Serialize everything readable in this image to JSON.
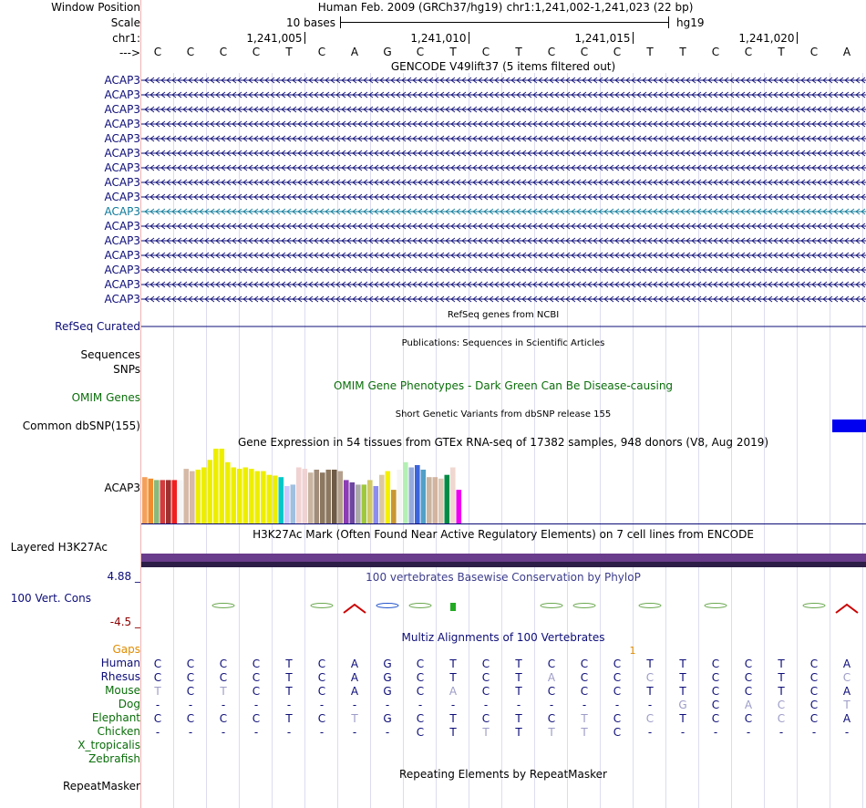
{
  "window_position": {
    "label": "Window Position",
    "assembly": "Human Feb. 2009 (GRCh37/hg19)",
    "coords": "chr1:1,241,002-1,241,023 (22 bp)"
  },
  "scale": {
    "label": "Scale",
    "bases": "10 bases",
    "db": "hg19"
  },
  "ruler": {
    "label": "chr1:",
    "ticks": [
      {
        "text": "1,241,005",
        "base": 4
      },
      {
        "text": "1,241,010",
        "base": 9
      },
      {
        "text": "1,241,015",
        "base": 14
      },
      {
        "text": "1,241,020",
        "base": 19
      }
    ]
  },
  "strand": {
    "label": "--->",
    "bases": [
      "C",
      "C",
      "C",
      "C",
      "T",
      "C",
      "A",
      "G",
      "C",
      "T",
      "C",
      "T",
      "C",
      "C",
      "C",
      "T",
      "T",
      "C",
      "C",
      "T",
      "C",
      "A"
    ]
  },
  "gencode": {
    "title": "GENCODE V49lift37 (5 items filtered out)",
    "items": [
      {
        "name": "ACAP3",
        "color": "#0c0c78"
      },
      {
        "name": "ACAP3",
        "color": "#0c0c78"
      },
      {
        "name": "ACAP3",
        "color": "#0c0c78"
      },
      {
        "name": "ACAP3",
        "color": "#0c0c78"
      },
      {
        "name": "ACAP3",
        "color": "#0c0c78"
      },
      {
        "name": "ACAP3",
        "color": "#0c0c78"
      },
      {
        "name": "ACAP3",
        "color": "#0c0c78"
      },
      {
        "name": "ACAP3",
        "color": "#0c0c78"
      },
      {
        "name": "ACAP3",
        "color": "#0c0c78"
      },
      {
        "name": "ACAP3",
        "color": "#0c7a9a"
      },
      {
        "name": "ACAP3",
        "color": "#0c0c78"
      },
      {
        "name": "ACAP3",
        "color": "#0c0c78"
      },
      {
        "name": "ACAP3",
        "color": "#0c0c78"
      },
      {
        "name": "ACAP3",
        "color": "#0c0c78"
      },
      {
        "name": "ACAP3",
        "color": "#0c0c78"
      },
      {
        "name": "ACAP3",
        "color": "#0c0c78"
      }
    ]
  },
  "refseq": {
    "title": "RefSeq genes from NCBI",
    "label": "RefSeq Curated",
    "color": "#0c0c78"
  },
  "publications": {
    "title": "Publications: Sequences in Scientific Articles",
    "sequences_label": "Sequences",
    "snps_label": "SNPs"
  },
  "omim": {
    "title": "OMIM Gene Phenotypes - Dark Green Can Be Disease-causing",
    "label": "OMIM Genes",
    "color": "#0a6e0a"
  },
  "dbsnp": {
    "title": "Short Genetic Variants from dbSNP release 155",
    "label": "Common dbSNP(155)",
    "color": "#0000f0"
  },
  "gtex": {
    "title": "Gene Expression in 54 tissues from GTEx RNA-seq of 17382 samples, 948 donors (V8, Aug 2019)",
    "label": "ACAP3",
    "bars": [
      {
        "v": 0.62,
        "c": "#f5a05a"
      },
      {
        "v": 0.6,
        "c": "#f08c2c"
      },
      {
        "v": 0.58,
        "c": "#8bb87b"
      },
      {
        "v": 0.58,
        "c": "#d23c3c"
      },
      {
        "v": 0.58,
        "c": "#a03030"
      },
      {
        "v": 0.58,
        "c": "#f02020"
      },
      {
        "v": 0.58,
        "c": "#f5f5f5"
      },
      {
        "v": 0.73,
        "c": "#d6b9a6"
      },
      {
        "v": 0.7,
        "c": "#d6b9a6"
      },
      {
        "v": 0.72,
        "c": "#eeee00"
      },
      {
        "v": 0.75,
        "c": "#eeee00"
      },
      {
        "v": 0.85,
        "c": "#eeee00"
      },
      {
        "v": 1.0,
        "c": "#eeee00"
      },
      {
        "v": 1.0,
        "c": "#eeee00"
      },
      {
        "v": 0.82,
        "c": "#eeee00"
      },
      {
        "v": 0.75,
        "c": "#eeee00"
      },
      {
        "v": 0.73,
        "c": "#eeee00"
      },
      {
        "v": 0.75,
        "c": "#eeee00"
      },
      {
        "v": 0.73,
        "c": "#eeee00"
      },
      {
        "v": 0.7,
        "c": "#eeee00"
      },
      {
        "v": 0.7,
        "c": "#eeee00"
      },
      {
        "v": 0.65,
        "c": "#eeee00"
      },
      {
        "v": 0.64,
        "c": "#eeee00"
      },
      {
        "v": 0.62,
        "c": "#00c8c8"
      },
      {
        "v": 0.5,
        "c": "#c8c8ff"
      },
      {
        "v": 0.52,
        "c": "#a0c0e0"
      },
      {
        "v": 0.75,
        "c": "#f0d2d2"
      },
      {
        "v": 0.73,
        "c": "#f0d2d2"
      },
      {
        "v": 0.68,
        "c": "#c8b4a0"
      },
      {
        "v": 0.72,
        "c": "#a08c78"
      },
      {
        "v": 0.68,
        "c": "#8c7860"
      },
      {
        "v": 0.72,
        "c": "#8c7860"
      },
      {
        "v": 0.72,
        "c": "#6e5a46"
      },
      {
        "v": 0.7,
        "c": "#b4a08c"
      },
      {
        "v": 0.58,
        "c": "#8c3cb4"
      },
      {
        "v": 0.55,
        "c": "#6e46a0"
      },
      {
        "v": 0.52,
        "c": "#aaaaaa"
      },
      {
        "v": 0.52,
        "c": "#a0c83c"
      },
      {
        "v": 0.58,
        "c": "#d2c864"
      },
      {
        "v": 0.5,
        "c": "#8c8cf0"
      },
      {
        "v": 0.65,
        "c": "#dcc8a0"
      },
      {
        "v": 0.7,
        "c": "#f5f000"
      },
      {
        "v": 0.45,
        "c": "#c89632"
      },
      {
        "v": 0.72,
        "c": "#f5f5f5"
      },
      {
        "v": 0.82,
        "c": "#b4f0b4"
      },
      {
        "v": 0.75,
        "c": "#96aadc"
      },
      {
        "v": 0.78,
        "c": "#3c64dc"
      },
      {
        "v": 0.72,
        "c": "#50a0c8"
      },
      {
        "v": 0.62,
        "c": "#c8b4a0"
      },
      {
        "v": 0.62,
        "c": "#d2b4a0"
      },
      {
        "v": 0.6,
        "c": "#dcc8b4"
      },
      {
        "v": 0.65,
        "c": "#008c46"
      },
      {
        "v": 0.75,
        "c": "#f0d8d0"
      },
      {
        "v": 0.45,
        "c": "#f000f0"
      }
    ]
  },
  "h3k27ac": {
    "title": "H3K27Ac Mark (Often Found Near Active Regulatory Elements) on 7 cell lines from ENCODE",
    "label": "Layered H3K27Ac"
  },
  "phylop": {
    "title": "100 vertebrates Basewise Conservation by PhyloP",
    "label": "100 Vert. Cons",
    "max": "4.88 _",
    "min": "-4.5 _",
    "color": "#3c3c8c"
  },
  "multiz": {
    "title": "Multiz Alignments of 100 Vertebrates",
    "gaps_label": "Gaps",
    "gap_marker": "1",
    "species": [
      {
        "name": "Human",
        "seq": [
          "C",
          "C",
          "C",
          "C",
          "T",
          "C",
          "A",
          "G",
          "C",
          "T",
          "C",
          "T",
          "C",
          "C",
          "C",
          "T",
          "T",
          "C",
          "C",
          "T",
          "C",
          "A"
        ]
      },
      {
        "name": "Rhesus",
        "seq": [
          "C",
          "C",
          "C",
          "C",
          "T",
          "C",
          "A",
          "G",
          "C",
          "T",
          "C",
          "T",
          "A",
          "C",
          "C",
          "C",
          "T",
          "C",
          "C",
          "T",
          "C",
          "C"
        ]
      },
      {
        "name": "Mouse",
        "seq": [
          "T",
          "C",
          "T",
          "C",
          "T",
          "C",
          "A",
          "G",
          "C",
          "A",
          "C",
          "T",
          "C",
          "C",
          "C",
          "T",
          "T",
          "C",
          "C",
          "T",
          "C",
          "A"
        ]
      },
      {
        "name": "Dog",
        "seq": [
          "-",
          "-",
          "-",
          "-",
          "-",
          "-",
          "-",
          "-",
          "-",
          "-",
          "-",
          "-",
          "-",
          "-",
          "-",
          "-",
          "G",
          "C",
          "A",
          "C",
          "C",
          "T"
        ]
      },
      {
        "name": "Elephant",
        "seq": [
          "C",
          "C",
          "C",
          "C",
          "T",
          "C",
          "T",
          "G",
          "C",
          "T",
          "C",
          "T",
          "C",
          "T",
          "C",
          "C",
          "T",
          "C",
          "C",
          "C",
          "C",
          "A"
        ]
      },
      {
        "name": "Chicken",
        "seq": [
          "-",
          "-",
          "-",
          "-",
          "-",
          "-",
          "-",
          "-",
          "C",
          "T",
          "T",
          "T",
          "T",
          "T",
          "C",
          "-",
          "-",
          "-",
          "-",
          "-",
          "-",
          "-"
        ]
      },
      {
        "name": "X_tropicalis",
        "seq": []
      },
      {
        "name": "Zebrafish",
        "seq": []
      }
    ]
  },
  "repeatmasker": {
    "title": "Repeating Elements by RepeatMasker",
    "label": "RepeatMasker"
  },
  "colors": {
    "label_blue": "#0c0c78",
    "gaps_orange": "#e08c00",
    "species_green": "#0a6e0a",
    "grid": "#dcdcf0",
    "pink_divider": "#f0b4b4"
  }
}
